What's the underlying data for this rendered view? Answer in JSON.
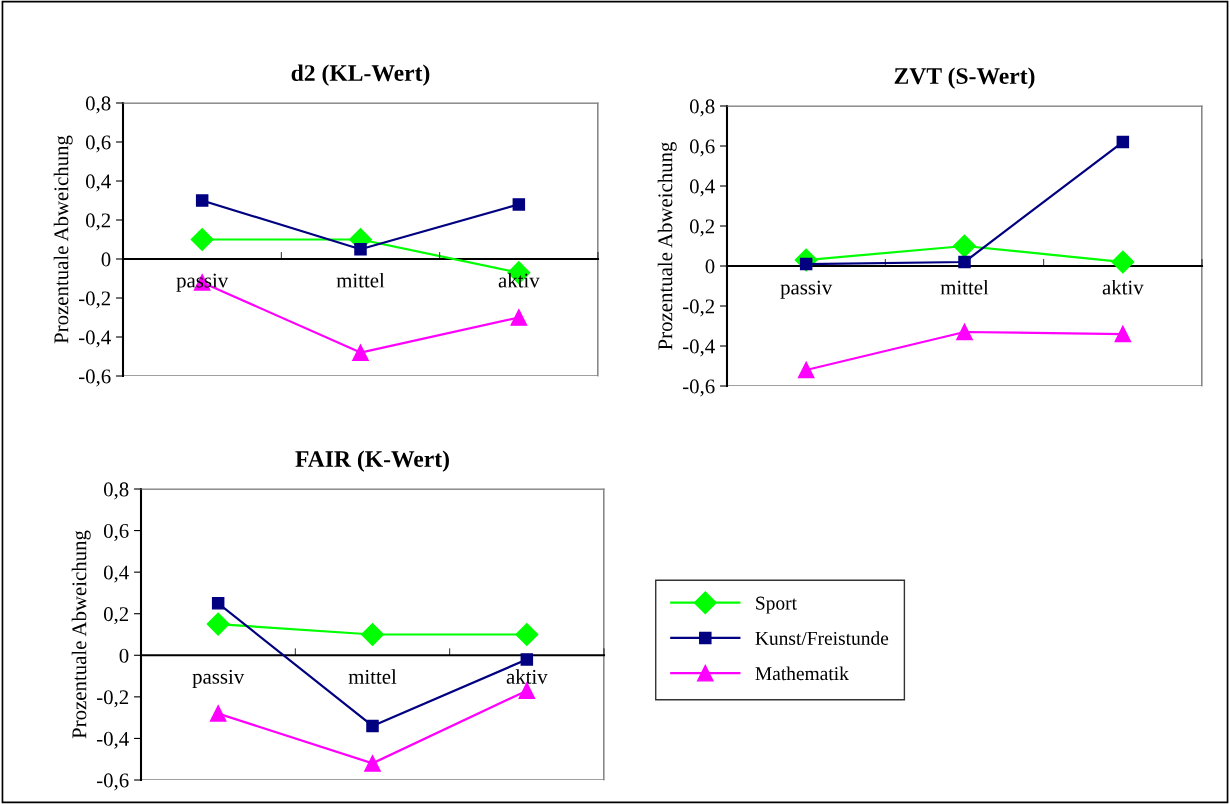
{
  "chart_data": [
    {
      "type": "line",
      "title": "d2 (KL-Wert)",
      "ylabel": "Prozentuale Abweichung",
      "categories": [
        "passiv",
        "mittel",
        "aktiv"
      ],
      "ylim": [
        -0.6,
        0.8
      ],
      "yticks": [
        {
          "value": -0.6,
          "label": "-0,6"
        },
        {
          "value": -0.4,
          "label": "-0,4"
        },
        {
          "value": -0.2,
          "label": "-0,2"
        },
        0,
        {
          "value": 0.2,
          "label": "0,2"
        },
        {
          "value": 0.4,
          "label": "0,4"
        },
        {
          "value": 0.6,
          "label": "0,6"
        },
        {
          "value": 0.8,
          "label": "0,8"
        }
      ],
      "grid": false,
      "legend": false,
      "series": [
        {
          "color": "#00ff00",
          "marker": "diamond",
          "values": [
            0.1,
            0.1,
            -0.07
          ]
        },
        {
          "color": "#000080",
          "marker": "square",
          "values": [
            0.3,
            0.05,
            0.28
          ]
        },
        {
          "color": "#ff00ff",
          "marker": "triangle",
          "values": [
            -0.12,
            -0.48,
            -0.3
          ]
        }
      ]
    },
    {
      "type": "line",
      "title": "ZVT (S-Wert)",
      "ylabel": "Prozentuale Abweichung",
      "categories": [
        "passiv",
        "mittel",
        "aktiv"
      ],
      "ylim": [
        -0.6,
        0.8
      ],
      "yticks": [
        {
          "value": -0.6,
          "label": "-0,6"
        },
        {
          "value": -0.4,
          "label": "-0,4"
        },
        {
          "value": -0.2,
          "label": "-0,2"
        },
        0,
        {
          "value": 0.2,
          "label": "0,2"
        },
        {
          "value": 0.4,
          "label": "0,4"
        },
        {
          "value": 0.6,
          "label": "0,6"
        },
        {
          "value": 0.8,
          "label": "0,8"
        }
      ],
      "grid": false,
      "legend": false,
      "series": [
        {
          "color": "#00ff00",
          "marker": "diamond",
          "values": [
            0.03,
            0.1,
            0.02
          ]
        },
        {
          "color": "#000080",
          "marker": "square",
          "values": [
            0.01,
            0.02,
            0.62
          ]
        },
        {
          "color": "#ff00ff",
          "marker": "triangle",
          "values": [
            -0.52,
            -0.33,
            -0.34
          ]
        }
      ]
    },
    {
      "type": "line",
      "title": "FAIR (K-Wert)",
      "ylabel": "Prozentuale Abweichung",
      "categories": [
        "passiv",
        "mittel",
        "aktiv"
      ],
      "ylim": [
        -0.6,
        0.8
      ],
      "yticks": [
        {
          "value": -0.6,
          "label": "-0,6"
        },
        {
          "value": -0.4,
          "label": "-0,4"
        },
        {
          "value": -0.2,
          "label": "-0,2"
        },
        0,
        {
          "value": 0.2,
          "label": "0,2"
        },
        {
          "value": 0.4,
          "label": "0,4"
        },
        {
          "value": 0.6,
          "label": "0,6"
        },
        {
          "value": 0.8,
          "label": "0,8"
        }
      ],
      "grid": false,
      "legend": "right",
      "series": [
        {
          "name": "Sport",
          "color": "#00ff00",
          "marker": "diamond",
          "values": [
            0.15,
            0.1,
            0.1
          ]
        },
        {
          "name": "Kunst/Freistunde",
          "color": "#000080",
          "marker": "square",
          "values": [
            0.25,
            -0.34,
            -0.02
          ]
        },
        {
          "name": "Mathematik",
          "color": "#ff00ff",
          "marker": "triangle",
          "values": [
            -0.28,
            -0.52,
            -0.17
          ]
        }
      ]
    }
  ]
}
